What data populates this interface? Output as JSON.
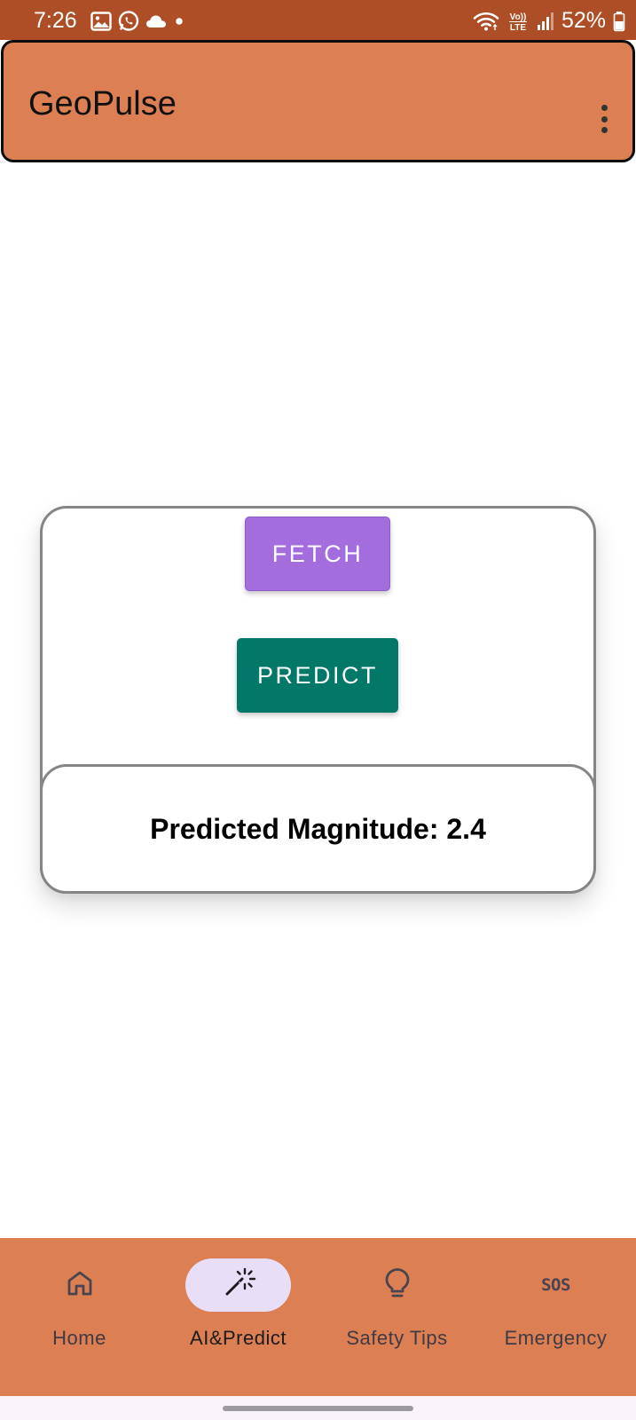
{
  "status_bar": {
    "time": "7:26",
    "battery_percent": "52%",
    "icons_left": [
      "gallery-icon",
      "whatsapp-icon",
      "cloud-icon",
      "dot-icon"
    ],
    "icons_right": [
      "wifi-icon",
      "volte-icon",
      "signal-icon",
      "battery-icon"
    ],
    "background": "#ad4e26"
  },
  "app_bar": {
    "title": "GeoPulse",
    "background": "#dc7f52",
    "menu_icon": "more-vert-icon"
  },
  "card": {
    "fetch_label": "FETCH",
    "predict_label": "PREDICT",
    "result_text": "Predicted Magnitude: 2.4",
    "fetch_color": "#a46ddd",
    "predict_color": "#017868"
  },
  "bottom_nav": {
    "background": "#dc7f52",
    "active_index": 1,
    "items": [
      {
        "label": "Home",
        "icon": "home-icon"
      },
      {
        "label": "AI&Predict",
        "icon": "magic-wand-icon"
      },
      {
        "label": "Safety Tips",
        "icon": "lightbulb-icon"
      },
      {
        "label": "Emergency",
        "icon": "sos-icon",
        "glyph": "SOS"
      }
    ]
  }
}
